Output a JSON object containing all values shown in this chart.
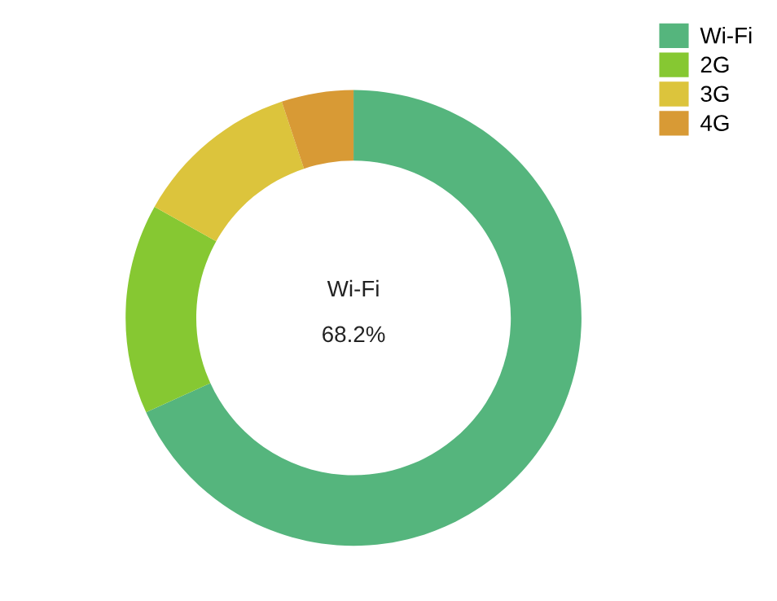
{
  "chart_data": {
    "type": "donut",
    "categories": [
      "Wi-Fi",
      "2G",
      "3G",
      "4G"
    ],
    "values": [
      68.2,
      14.9,
      11.8,
      5.1
    ],
    "colors": [
      "#55b57d",
      "#86c832",
      "#dcc43c",
      "#d89a35"
    ],
    "annotations": [
      "Wi-Fi",
      "68.2%"
    ],
    "legend": "top right"
  }
}
